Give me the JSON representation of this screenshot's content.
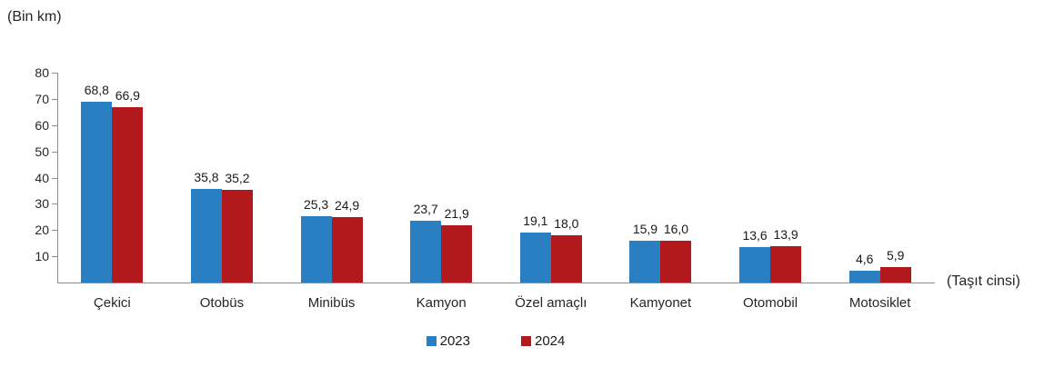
{
  "chart_data": {
    "type": "bar",
    "title": "",
    "ylabel": "(Bin km)",
    "xlabel": "(Taşıt cinsi)",
    "categories": [
      "Çekici",
      "Otobüs",
      "Minibüs",
      "Kamyon",
      "Özel amaçlı",
      "Kamyonet",
      "Otomobil",
      "Motosiklet"
    ],
    "series": [
      {
        "name": "2023",
        "color": "#2a7fc2",
        "values": [
          68.8,
          35.8,
          25.3,
          23.7,
          19.1,
          15.9,
          13.6,
          4.6
        ],
        "labels": [
          "68,8",
          "35,8",
          "25,3",
          "23,7",
          "19,1",
          "15,9",
          "13,6",
          "4,6"
        ]
      },
      {
        "name": "2024",
        "color": "#b2191c",
        "values": [
          66.9,
          35.2,
          24.9,
          21.9,
          18.0,
          16.0,
          13.9,
          5.9
        ],
        "labels": [
          "66,9",
          "35,2",
          "24,9",
          "21,9",
          "18,0",
          "16,0",
          "13,9",
          "5,9"
        ]
      }
    ],
    "ylim": [
      0,
      80
    ],
    "y_ticks": [
      10,
      20,
      30,
      40,
      50,
      60,
      70,
      80
    ],
    "grid": false,
    "legend_position": "bottom",
    "axis_color": "#8c8c8c",
    "text_color": "#262626"
  }
}
